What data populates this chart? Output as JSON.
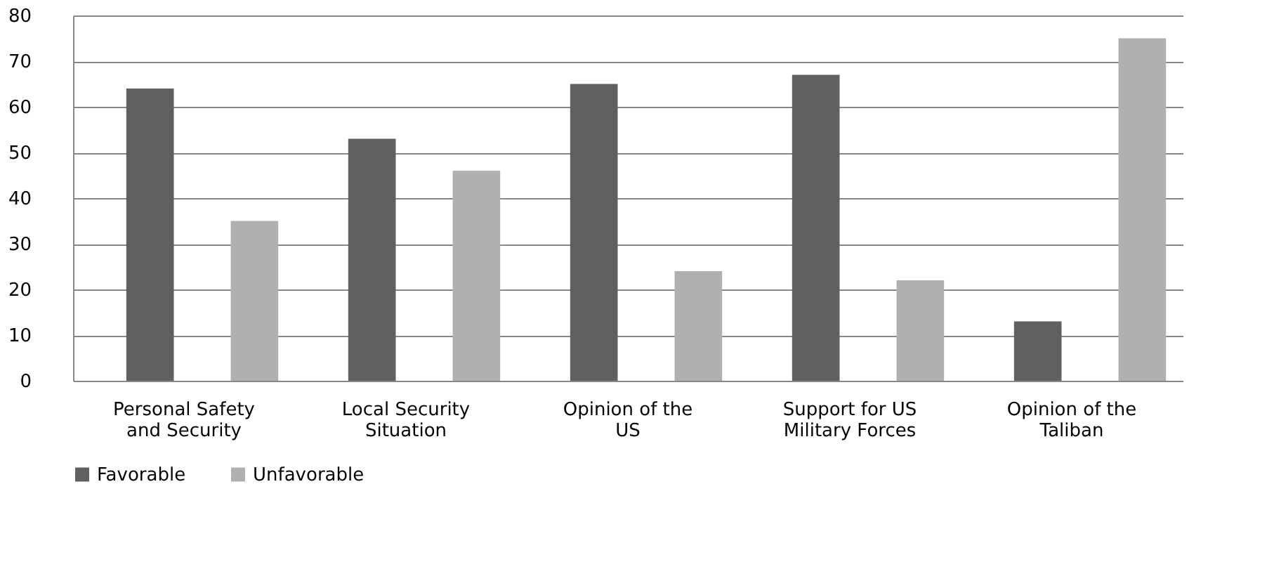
{
  "chart_data": {
    "type": "bar",
    "categories": [
      "Personal Safety\nand Security",
      "Local Security\nSituation",
      "Opinion of the\nUS",
      "Support for US\nMilitary Forces",
      "Opinion of the\nTaliban"
    ],
    "series": [
      {
        "name": "Favorable",
        "color": "#606060",
        "values": [
          64,
          53,
          65,
          67,
          13
        ]
      },
      {
        "name": "Unfavorable",
        "color": "#b0b0b0",
        "values": [
          35,
          46,
          24,
          22,
          75
        ]
      }
    ],
    "ylim": [
      0,
      80
    ],
    "yticks": [
      0,
      10,
      20,
      30,
      40,
      50,
      60,
      70,
      80
    ],
    "grid": "y",
    "legend": "bottom"
  }
}
